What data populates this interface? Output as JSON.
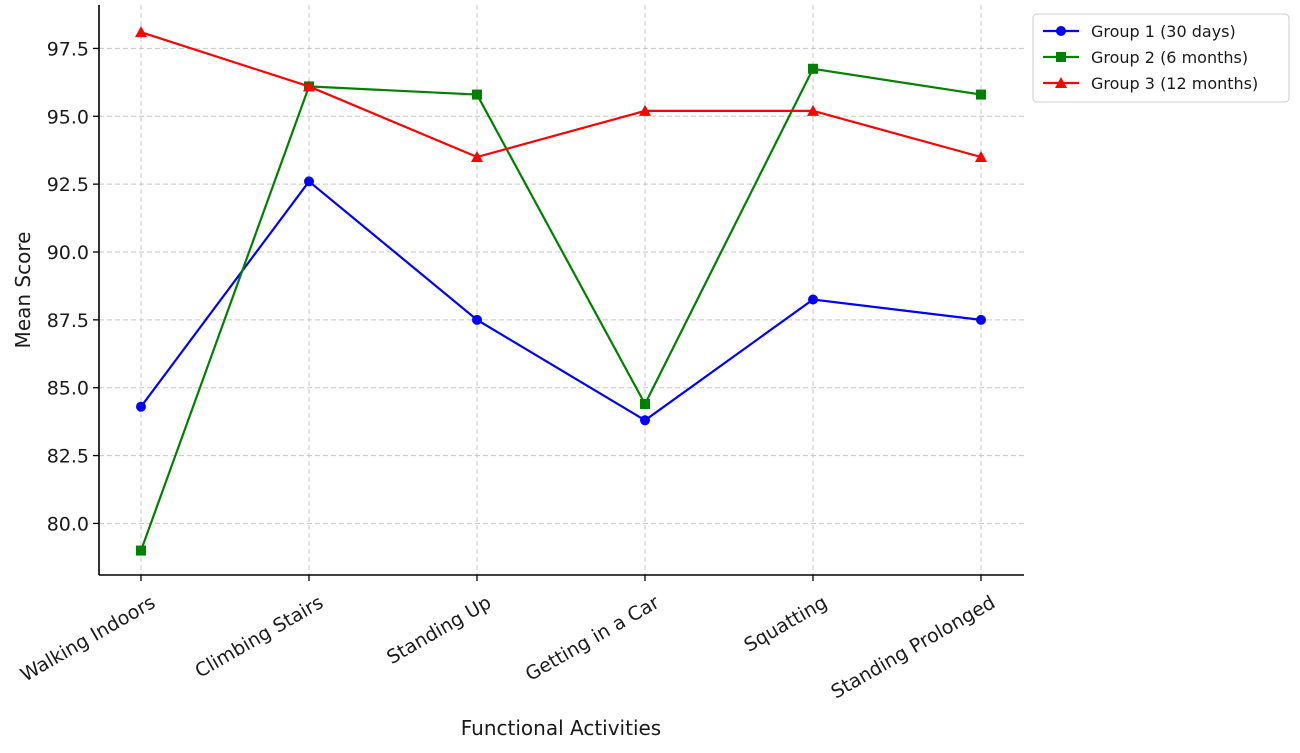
{
  "chart_data": {
    "type": "line",
    "title": "",
    "xlabel": "Functional Activities",
    "ylabel": "Mean Score",
    "categories": [
      "Walking Indoors",
      "Climbing Stairs",
      "Standing Up",
      "Getting in a Car",
      "Squatting",
      "Standing Prolonged"
    ],
    "yticks": [
      "80.0",
      "82.5",
      "85.0",
      "87.5",
      "90.0",
      "92.5",
      "95.0",
      "97.5"
    ],
    "ylim": [
      78.1,
      99.1
    ],
    "grid": true,
    "legend_position": "top-right, outside plot",
    "series": [
      {
        "name": "Group 1 (30 days)",
        "color": "#0000ff",
        "marker": "circle",
        "values": [
          84.3,
          92.6,
          87.5,
          83.8,
          88.25,
          87.5
        ]
      },
      {
        "name": "Group 2 (6 months)",
        "color": "#008000",
        "marker": "square",
        "values": [
          79.0,
          96.1,
          95.8,
          84.4,
          96.75,
          95.8
        ]
      },
      {
        "name": "Group 3 (12 months)",
        "color": "#ff0000",
        "marker": "triangle",
        "values": [
          98.1,
          96.1,
          93.5,
          95.2,
          95.2,
          93.5
        ]
      }
    ]
  }
}
